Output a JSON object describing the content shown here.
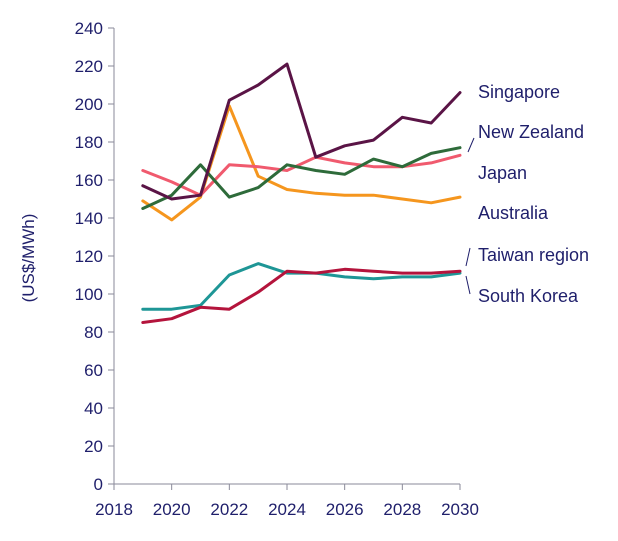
{
  "chart_data": {
    "type": "line",
    "title": "",
    "xlabel": "",
    "ylabel": "(US$/MWh)",
    "xlim": [
      2018,
      2030
    ],
    "ylim": [
      0,
      240
    ],
    "xticks": [
      2018,
      2020,
      2022,
      2024,
      2026,
      2028,
      2030
    ],
    "yticks": [
      0,
      20,
      40,
      60,
      80,
      100,
      120,
      140,
      160,
      180,
      200,
      220,
      240
    ],
    "grid": false,
    "x": [
      2019,
      2020,
      2021,
      2022,
      2023,
      2024,
      2025,
      2026,
      2027,
      2028,
      2029,
      2030
    ],
    "series": [
      {
        "name": "Singapore",
        "color": "#5a1446",
        "values": [
          157,
          150,
          152,
          202,
          210,
          221,
          172,
          178,
          181,
          193,
          190,
          206
        ]
      },
      {
        "name": "New Zealand",
        "color": "#2e6b3a",
        "values": [
          145,
          152,
          168,
          151,
          156,
          168,
          165,
          163,
          171,
          167,
          174,
          177
        ]
      },
      {
        "name": "Japan",
        "color": "#f05a6e",
        "values": [
          165,
          159,
          152,
          168,
          167,
          165,
          172,
          169,
          167,
          167,
          169,
          173
        ]
      },
      {
        "name": "Australia",
        "color": "#f5961e",
        "values": [
          149,
          139,
          151,
          199,
          162,
          155,
          153,
          152,
          152,
          150,
          148,
          151
        ]
      },
      {
        "name": "Taiwan region",
        "color": "#b4143c",
        "values": [
          85,
          87,
          93,
          92,
          101,
          112,
          111,
          113,
          112,
          111,
          111,
          112
        ]
      },
      {
        "name": "South Korea",
        "color": "#1e9696",
        "values": [
          92,
          92,
          94,
          110,
          116,
          111,
          111,
          109,
          108,
          109,
          109,
          111
        ]
      }
    ]
  }
}
